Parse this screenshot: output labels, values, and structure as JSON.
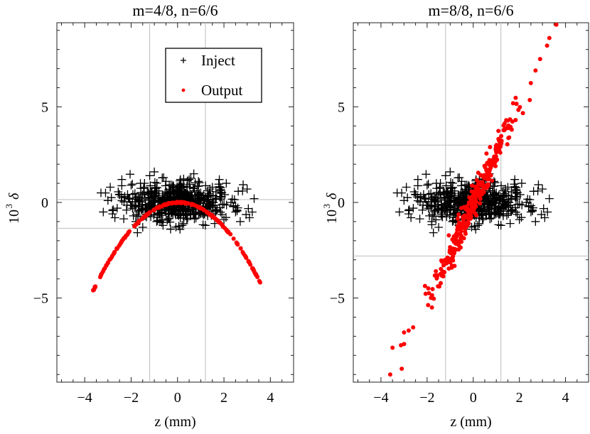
{
  "chart_data": [
    {
      "type": "scatter",
      "title": "m=4/8, n=6/6",
      "xlabel": "z (mm)",
      "ylabel_base": "10",
      "ylabel_exp": "3",
      "ylabel_var": "δ",
      "xlim": [
        -5.2,
        5.0
      ],
      "ylim": [
        -9.4,
        9.4
      ],
      "xticks": [
        -4,
        -2,
        0,
        2,
        4
      ],
      "xtick_labels": [
        "−4",
        "−2",
        "0",
        "2",
        "4"
      ],
      "yticks": [
        -5,
        0,
        5
      ],
      "ytick_labels": [
        "−5",
        "0",
        "5"
      ],
      "gridlines": {
        "x": [
          -1.2,
          1.2
        ],
        "y": [
          0.15,
          -1.35
        ]
      },
      "legend": {
        "placement": "top-right",
        "entries": [
          {
            "label": "Inject",
            "marker": "plus",
            "color": "#000000"
          },
          {
            "label": "Output",
            "marker": "dot",
            "color": "#ff0000"
          }
        ]
      },
      "series": [
        {
          "name": "Inject",
          "marker": "plus",
          "color": "#000000",
          "x": [
            -3.3,
            -3.2,
            -2.9,
            -2.6,
            -2.4,
            -2.1,
            -1.9,
            -1.6,
            -1.4,
            -1.1,
            -0.9,
            -0.6,
            -0.4,
            -0.1,
            0.1,
            0.4,
            0.6,
            0.9,
            1.1,
            1.4,
            1.6,
            1.9,
            2.1,
            2.5,
            2.8,
            3.1,
            3.3,
            -3.0,
            -2.7,
            -2.2,
            -1.7,
            -1.2,
            -0.7,
            -0.2,
            0.3,
            0.8,
            1.3,
            1.8,
            2.3,
            2.7,
            -2.5,
            -1.5,
            -0.5,
            0.5,
            1.5,
            2.4,
            -1.8,
            -0.8,
            0.2,
            1.0,
            2.0,
            -2.0,
            0.0,
            1.7,
            -1.0,
            0.7,
            -2.8,
            3.0,
            -0.3,
            1.2
          ],
          "y": [
            0.5,
            -0.5,
            0.8,
            -0.3,
            1.2,
            0.2,
            -0.7,
            1.0,
            -0.4,
            0.6,
            -1.0,
            1.3,
            0.1,
            -0.6,
            0.9,
            -0.9,
            0.4,
            1.1,
            -0.2,
            0.7,
            -1.1,
            0.3,
            1.0,
            -0.5,
            0.6,
            -0.8,
            0.2,
            0.1,
            -0.8,
            -0.4,
            0.3,
            1.4,
            -0.1,
            0.9,
            0.5,
            -0.3,
            -0.7,
            1.2,
            0.0,
            -1.0,
            0.4,
            -1.3,
            1.1,
            1.2,
            0.8,
            -0.2,
            -1.0,
            -0.6,
            -1.2,
            0.5,
            -0.9,
            0.9,
            0.3,
            -0.4,
            1.6,
            1.5,
            -0.6,
            0.7,
            -1.4,
            -1.2
          ]
        },
        {
          "name": "Output",
          "marker": "dot",
          "color": "#ff0000",
          "curve": {
            "kind": "parabola",
            "a": -0.34,
            "center": 0.05,
            "peak": 0.0,
            "x_range": [
              -3.65,
              3.65
            ],
            "count": 230
          }
        }
      ]
    },
    {
      "type": "scatter",
      "title": "m=8/8, n=6/6",
      "xlabel": "z (mm)",
      "ylabel_base": "10",
      "ylabel_exp": "3",
      "ylabel_var": "δ",
      "xlim": [
        -5.2,
        5.0
      ],
      "ylim": [
        -9.4,
        9.4
      ],
      "xticks": [
        -4,
        -2,
        0,
        2,
        4
      ],
      "xtick_labels": [
        "−4",
        "−2",
        "0",
        "2",
        "4"
      ],
      "yticks": [
        -5,
        0,
        5
      ],
      "ytick_labels": [
        "−5",
        "0",
        "5"
      ],
      "gridlines": {
        "x": [
          -1.2,
          1.2
        ],
        "y": [
          3.0,
          -2.8
        ]
      },
      "series": [
        {
          "name": "Inject",
          "marker": "plus",
          "color": "#000000",
          "x": [
            -3.3,
            -3.2,
            -2.9,
            -2.6,
            -2.4,
            -2.1,
            -1.9,
            -1.6,
            -1.4,
            -1.1,
            -0.9,
            -0.6,
            -0.4,
            -0.1,
            0.1,
            0.4,
            0.6,
            0.9,
            1.1,
            1.4,
            1.6,
            1.9,
            2.1,
            2.5,
            2.8,
            3.1,
            3.3,
            -3.0,
            -2.7,
            -2.2,
            -1.7,
            -1.2,
            -0.7,
            -0.2,
            0.3,
            0.8,
            1.3,
            1.8,
            2.3,
            2.7,
            -2.5,
            -1.5,
            -0.5,
            0.5,
            1.5,
            2.4,
            -1.8,
            -0.8,
            0.2,
            1.0,
            2.0,
            -2.0,
            0.0,
            1.7,
            -1.0,
            0.7,
            -2.8,
            3.0,
            -0.3,
            1.2
          ],
          "y": [
            0.5,
            -0.5,
            0.8,
            -0.3,
            1.2,
            0.2,
            -0.7,
            1.0,
            -0.4,
            0.6,
            -1.0,
            1.3,
            0.1,
            -0.6,
            0.9,
            -0.9,
            0.4,
            1.1,
            -0.2,
            0.7,
            -1.1,
            0.3,
            1.0,
            -0.5,
            0.6,
            -0.8,
            0.2,
            0.1,
            -0.8,
            -0.4,
            0.3,
            1.4,
            -0.1,
            0.9,
            0.5,
            -0.3,
            -0.7,
            1.2,
            0.0,
            -1.0,
            0.4,
            -1.3,
            1.1,
            1.2,
            0.8,
            -0.2,
            -1.0,
            -0.6,
            -1.2,
            0.5,
            -0.9,
            0.9,
            0.3,
            -0.4,
            1.6,
            1.5,
            -0.6,
            0.7,
            -1.4,
            -1.2
          ]
        },
        {
          "name": "Output",
          "marker": "dot",
          "color": "#ff0000",
          "band": {
            "kind": "linear",
            "slope": 2.55,
            "x_range": [
              -3.6,
              3.3
            ],
            "spread": 0.45,
            "count": 320
          }
        }
      ]
    }
  ]
}
